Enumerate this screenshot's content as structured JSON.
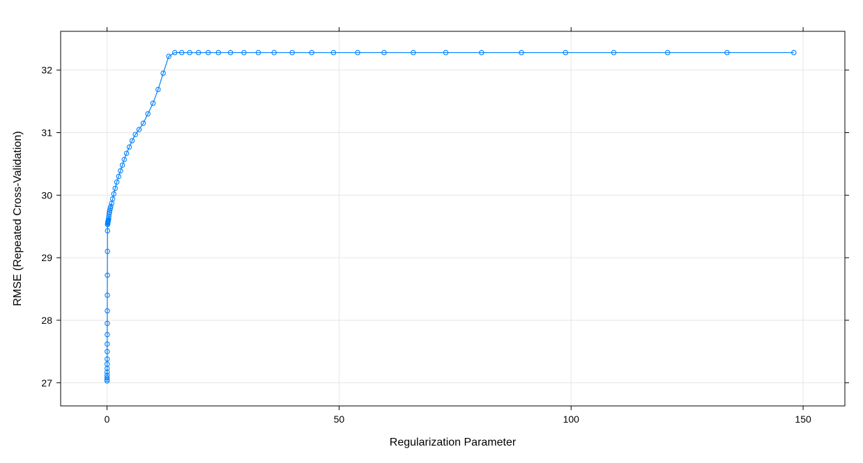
{
  "chart_data": {
    "type": "line",
    "title": "",
    "xlabel": "Regularization Parameter",
    "ylabel": "RMSE (Repeated Cross-Validation)",
    "xlim": [
      -10,
      159
    ],
    "ylim": [
      26.63,
      32.62
    ],
    "xticks": [
      0,
      50,
      100,
      150
    ],
    "yticks": [
      27,
      28,
      29,
      30,
      31,
      32
    ],
    "grid": true,
    "legend": "none",
    "series": [
      {
        "color": "#0080ff",
        "marker": "circle-open",
        "x": [
          0,
          0.003,
          0.006,
          0.01,
          0.013,
          0.017,
          0.021,
          0.025,
          0.03,
          0.035,
          0.041,
          0.047,
          0.055,
          0.064,
          0.075,
          0.088,
          0.103,
          0.12,
          0.14,
          0.165,
          0.19,
          0.22,
          0.255,
          0.29,
          0.33,
          0.38,
          0.45,
          0.52,
          0.6,
          0.7,
          0.8,
          1.0,
          1.2,
          1.45,
          1.75,
          2.1,
          2.5,
          2.9,
          3.3,
          3.7,
          4.2,
          4.8,
          5.4,
          6.1,
          6.9,
          7.8,
          8.8,
          9.9,
          11.0,
          12.1,
          13.3,
          14.6,
          16.1,
          17.8,
          19.7,
          21.8,
          24.0,
          26.6,
          29.5,
          32.6,
          36.0,
          39.9,
          44.1,
          48.8,
          54.0,
          59.7,
          66.0,
          73.0,
          80.7,
          89.3,
          98.8,
          109.2,
          120.8,
          133.6,
          148.0
        ],
        "y": [
          27.03,
          27.05,
          27.08,
          27.12,
          27.17,
          27.23,
          27.3,
          27.38,
          27.5,
          27.62,
          27.77,
          27.95,
          28.15,
          28.4,
          28.72,
          29.1,
          29.43,
          29.53,
          29.55,
          29.56,
          29.57,
          29.58,
          29.59,
          29.6,
          29.62,
          29.66,
          29.7,
          29.73,
          29.76,
          29.79,
          29.82,
          29.87,
          29.94,
          30.02,
          30.11,
          30.21,
          30.3,
          30.39,
          30.48,
          30.57,
          30.67,
          30.77,
          30.87,
          30.97,
          31.05,
          31.15,
          31.3,
          31.47,
          31.69,
          31.95,
          32.22,
          32.28,
          32.28,
          32.28,
          32.28,
          32.28,
          32.28,
          32.28,
          32.28,
          32.28,
          32.28,
          32.28,
          32.28,
          32.28,
          32.28,
          32.28,
          32.28,
          32.28,
          32.28,
          32.28,
          32.28,
          32.28,
          32.28,
          32.28,
          32.28
        ]
      }
    ]
  }
}
